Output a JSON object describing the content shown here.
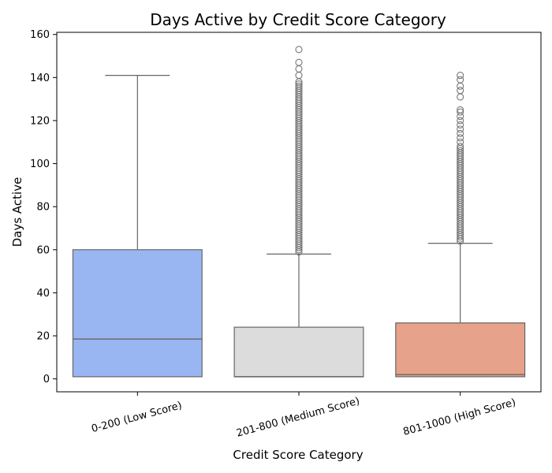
{
  "chart_data": {
    "type": "box",
    "title": "Days Active by Credit Score Category",
    "xlabel": "Credit Score Category",
    "ylabel": "Days Active",
    "ylim": [
      -6,
      161
    ],
    "yticks": [
      0,
      20,
      40,
      60,
      80,
      100,
      120,
      140,
      160
    ],
    "categories": [
      "0-200 (Low Score)",
      "201-800 (Medium Score)",
      "801-1000 (High Score)"
    ],
    "grid": false,
    "series": [
      {
        "category": "0-200 (Low Score)",
        "color": "#9ab6f2",
        "min": 1,
        "q1": 1,
        "median": 18.5,
        "q3": 60,
        "max": 141,
        "outliers": []
      },
      {
        "category": "201-800 (Medium Score)",
        "color": "#dcdcdc",
        "min": 1,
        "q1": 1,
        "median": 1,
        "q3": 24,
        "max": 58,
        "outliers": [
          59,
          60,
          61,
          62,
          63,
          64,
          65,
          66,
          67,
          68,
          69,
          70,
          71,
          72,
          73,
          74,
          75,
          76,
          77,
          78,
          79,
          80,
          81,
          82,
          83,
          84,
          85,
          86,
          87,
          88,
          89,
          90,
          91,
          92,
          93,
          94,
          95,
          96,
          97,
          98,
          99,
          100,
          101,
          102,
          103,
          104,
          105,
          106,
          107,
          108,
          109,
          110,
          111,
          112,
          113,
          114,
          115,
          116,
          117,
          118,
          119,
          120,
          121,
          122,
          123,
          124,
          125,
          126,
          127,
          128,
          129,
          130,
          131,
          132,
          133,
          134,
          135,
          136,
          137,
          138,
          141,
          144,
          147,
          153
        ]
      },
      {
        "category": "801-1000 (High Score)",
        "color": "#e6a28a",
        "min": 1,
        "q1": 1,
        "median": 2,
        "q3": 26,
        "max": 63,
        "outliers": [
          64,
          65,
          66,
          67,
          68,
          69,
          70,
          71,
          72,
          73,
          74,
          75,
          76,
          77,
          78,
          79,
          80,
          81,
          82,
          83,
          84,
          85,
          86,
          87,
          88,
          89,
          90,
          91,
          92,
          93,
          94,
          95,
          96,
          97,
          98,
          99,
          100,
          101,
          102,
          103,
          104,
          105,
          106,
          107,
          108,
          110,
          112,
          114,
          116,
          118,
          120,
          122,
          124,
          125,
          131,
          134,
          136,
          139,
          141
        ]
      }
    ]
  },
  "colors": {
    "line": "#666666",
    "axis": "#000000",
    "outlier_stroke": "#777777"
  }
}
